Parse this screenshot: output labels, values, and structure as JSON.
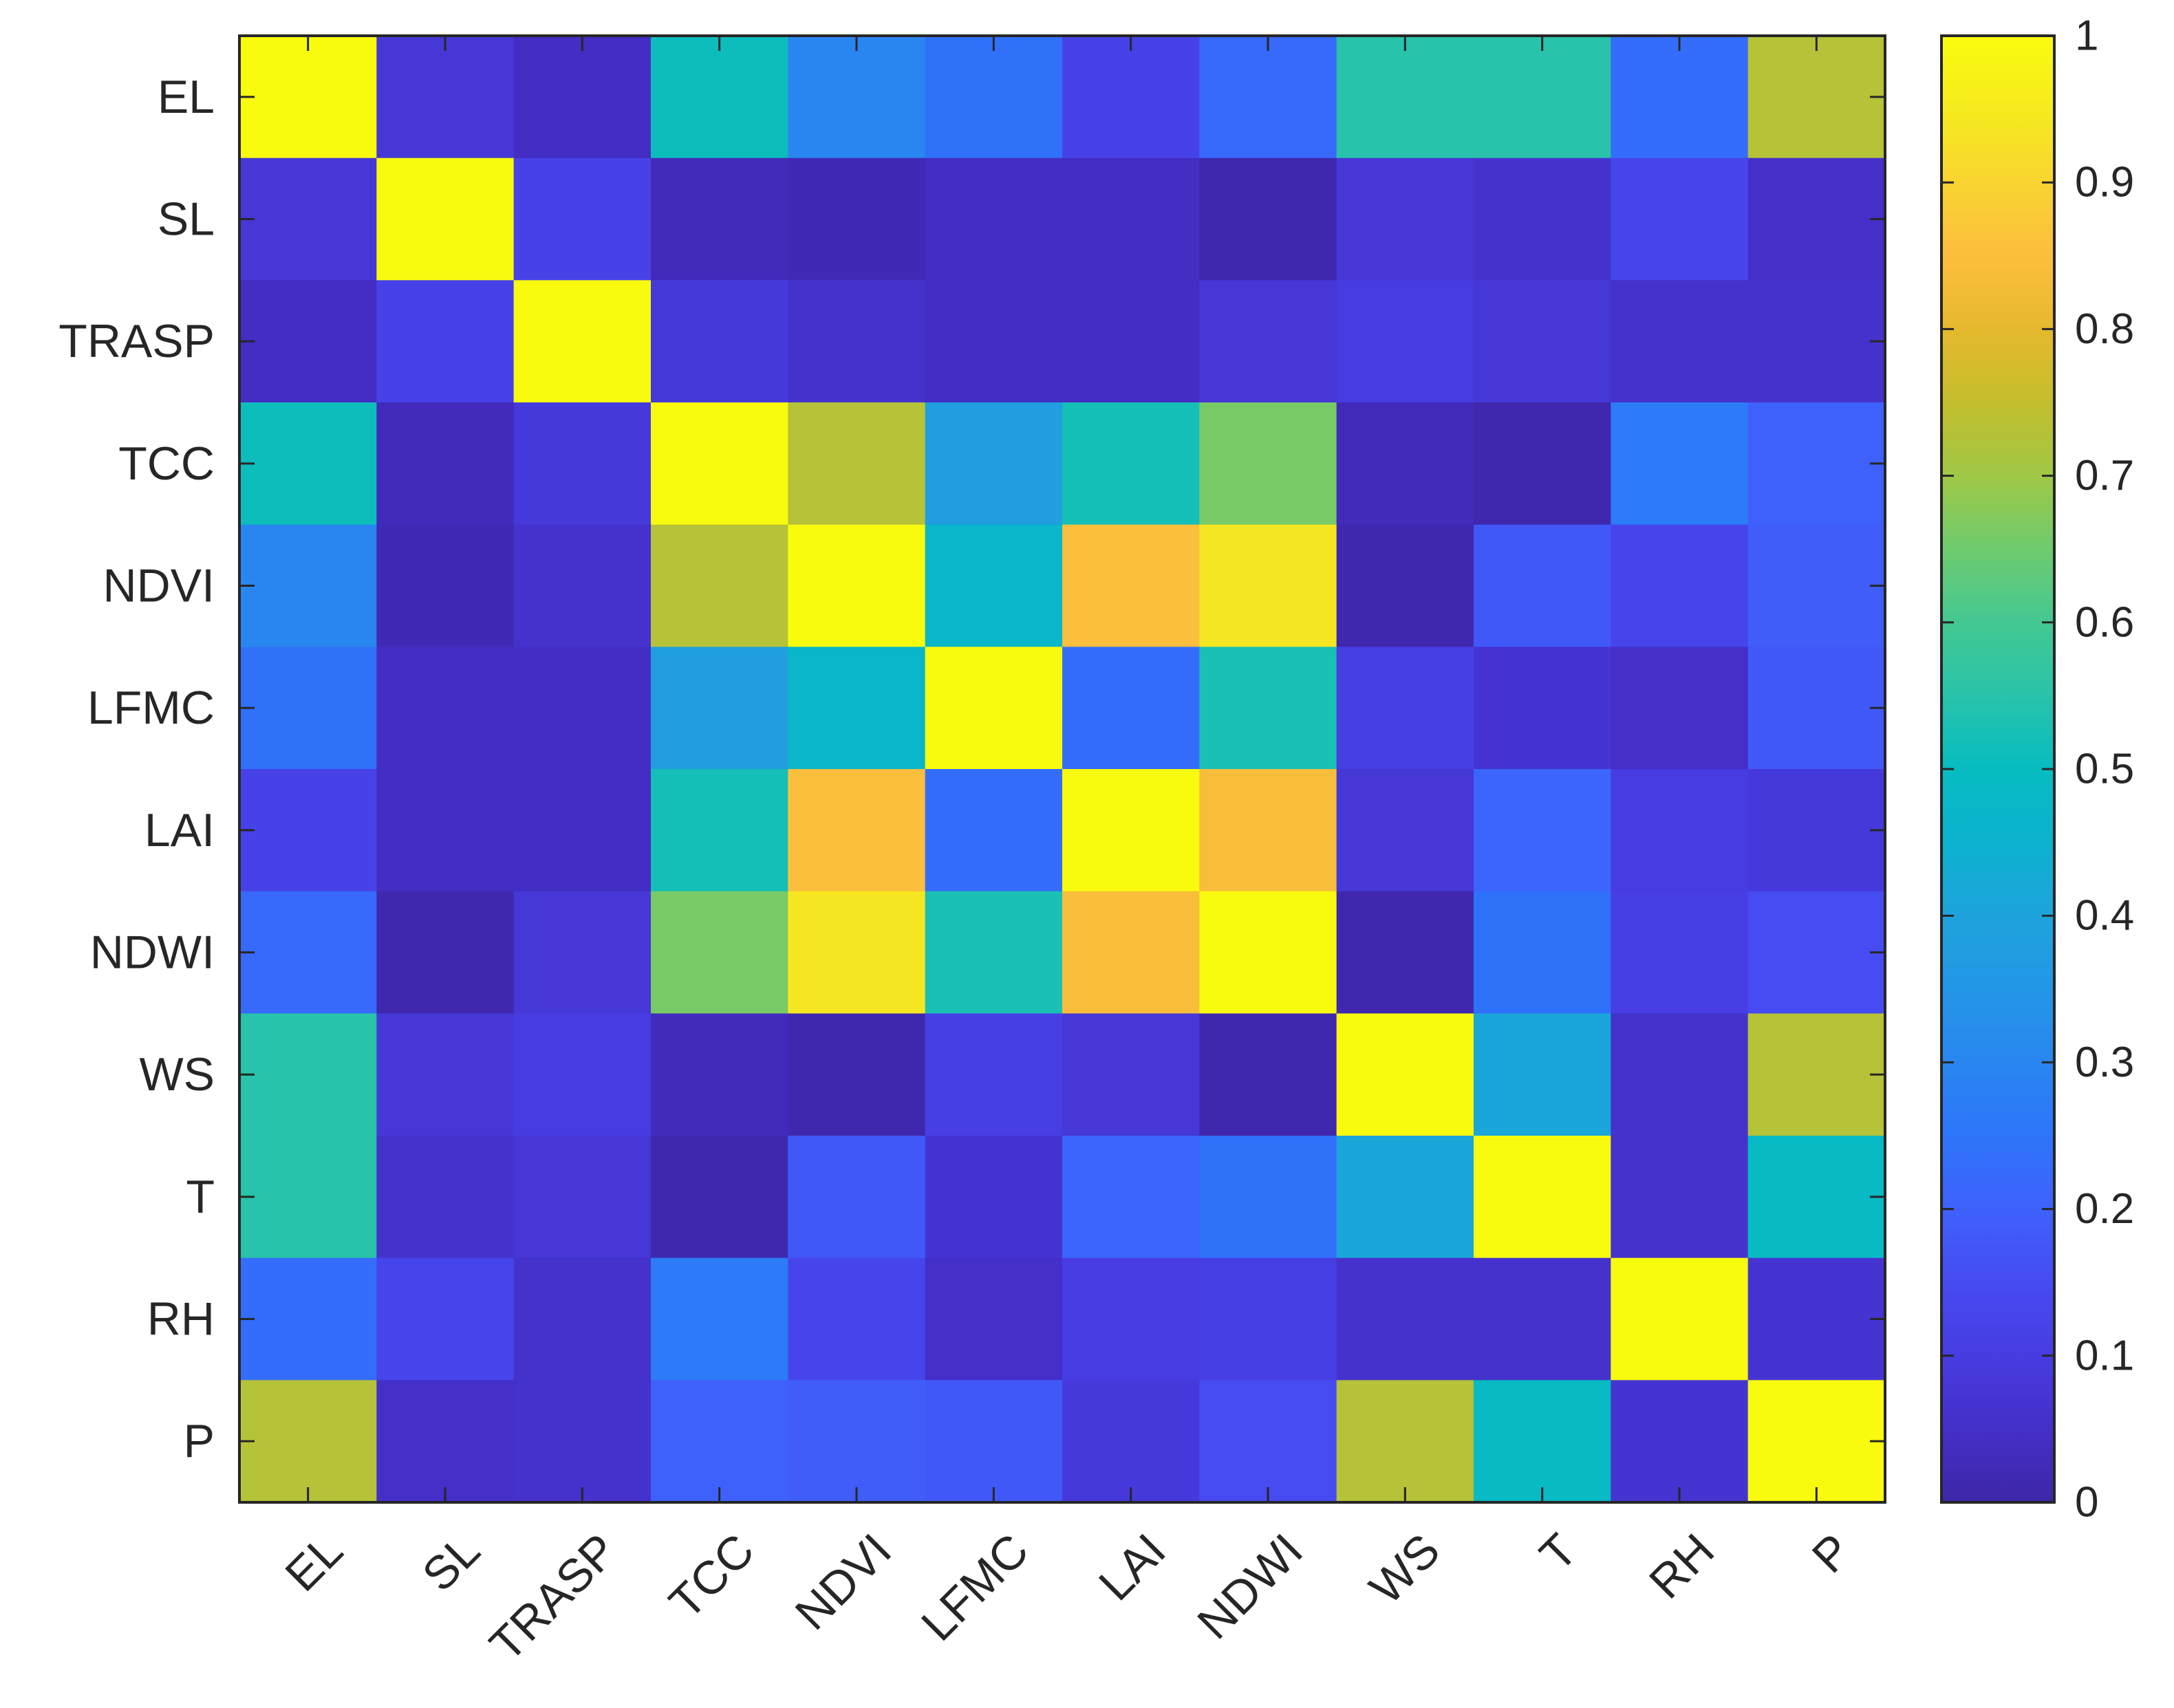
{
  "chart_data": {
    "type": "heatmap",
    "title": "",
    "xlabel": "",
    "ylabel": "",
    "variables": [
      "EL",
      "SL",
      "TRASP",
      "TCC",
      "NDVI",
      "LFMC",
      "LAI",
      "NDWI",
      "WS",
      "T",
      "RH",
      "P"
    ],
    "matrix": [
      [
        1.0,
        0.08,
        0.04,
        0.51,
        0.3,
        0.24,
        0.12,
        0.22,
        0.55,
        0.55,
        0.23,
        0.73
      ],
      [
        0.08,
        1.0,
        0.12,
        0.03,
        0.02,
        0.04,
        0.04,
        0.01,
        0.08,
        0.06,
        0.13,
        0.05
      ],
      [
        0.04,
        0.12,
        1.0,
        0.09,
        0.06,
        0.04,
        0.04,
        0.08,
        0.1,
        0.08,
        0.06,
        0.06
      ],
      [
        0.51,
        0.03,
        0.09,
        1.0,
        0.73,
        0.38,
        0.52,
        0.66,
        0.03,
        0.01,
        0.27,
        0.2
      ],
      [
        0.3,
        0.02,
        0.06,
        0.73,
        1.0,
        0.47,
        0.85,
        0.94,
        0.01,
        0.18,
        0.13,
        0.19
      ],
      [
        0.24,
        0.04,
        0.04,
        0.38,
        0.47,
        1.0,
        0.23,
        0.53,
        0.11,
        0.07,
        0.05,
        0.18
      ],
      [
        0.12,
        0.04,
        0.04,
        0.52,
        0.85,
        0.23,
        1.0,
        0.84,
        0.08,
        0.21,
        0.1,
        0.09
      ],
      [
        0.22,
        0.01,
        0.08,
        0.66,
        0.94,
        0.53,
        0.84,
        1.0,
        0.01,
        0.24,
        0.11,
        0.15
      ],
      [
        0.55,
        0.08,
        0.1,
        0.03,
        0.01,
        0.11,
        0.08,
        0.01,
        1.0,
        0.41,
        0.06,
        0.73
      ],
      [
        0.55,
        0.06,
        0.08,
        0.01,
        0.18,
        0.07,
        0.21,
        0.24,
        0.41,
        1.0,
        0.06,
        0.49
      ],
      [
        0.23,
        0.13,
        0.06,
        0.27,
        0.13,
        0.05,
        0.1,
        0.11,
        0.06,
        0.06,
        1.0,
        0.07
      ],
      [
        0.73,
        0.05,
        0.06,
        0.2,
        0.19,
        0.18,
        0.09,
        0.15,
        0.73,
        0.49,
        0.07,
        1.0
      ]
    ],
    "colorbar": {
      "colormap": "parula",
      "range": [
        0,
        1
      ],
      "ticks": [
        {
          "value": 0,
          "label": "0"
        },
        {
          "value": 0.1,
          "label": "0.1"
        },
        {
          "value": 0.2,
          "label": "0.2"
        },
        {
          "value": 0.3,
          "label": "0.3"
        },
        {
          "value": 0.4,
          "label": "0.4"
        },
        {
          "value": 0.5,
          "label": "0.5"
        },
        {
          "value": 0.6,
          "label": "0.6"
        },
        {
          "value": 0.7,
          "label": "0.7"
        },
        {
          "value": 0.8,
          "label": "0.8"
        },
        {
          "value": 0.9,
          "label": "0.9"
        },
        {
          "value": 1,
          "label": "1"
        }
      ],
      "position": "right"
    },
    "grid": false,
    "colors": {
      "axis": "#262626",
      "background": "#ffffff"
    }
  }
}
